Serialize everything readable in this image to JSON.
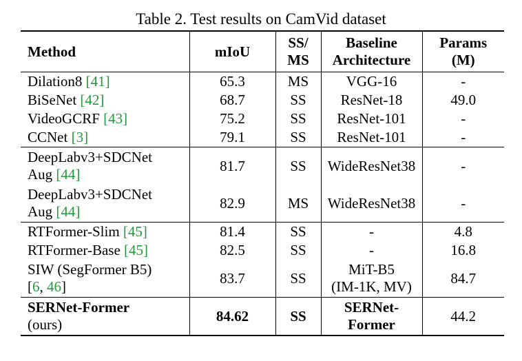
{
  "caption": "Table 2. Test results on CamVid dataset",
  "headers": {
    "method": "Method",
    "miou": "mIoU",
    "ssms_line1": "SS/",
    "ssms_line2": "MS",
    "arch_line1": "Baseline",
    "arch_line2": "Architecture",
    "params_line1": "Params",
    "params_line2": "(M)"
  },
  "rows": [
    {
      "name": "Dilation8 ",
      "ref": "[41]",
      "miou": "65.3",
      "ssms": "MS",
      "arch": "VGG-16",
      "params": "-"
    },
    {
      "name": "BiSeNet ",
      "ref": "[42]",
      "miou": "68.7",
      "ssms": "SS",
      "arch": "ResNet-18",
      "params": "49.0"
    },
    {
      "name": "VideoGCRF ",
      "ref": "[43]",
      "miou": "75.2",
      "ssms": "SS",
      "arch": "ResNet-101",
      "params": "-"
    },
    {
      "name": "CCNet ",
      "ref": "[3]",
      "miou": "79.1",
      "ssms": "SS",
      "arch": "ResNet-101",
      "params": "-"
    },
    {
      "name_line1": "DeepLabv3+SDCNet",
      "name_line2": "Aug ",
      "ref": "[44]",
      "miou": "81.7",
      "ssms": "SS",
      "arch": "WideResNet38",
      "params": "-"
    },
    {
      "name_line1": "DeepLabv3+SDCNet",
      "name_line2": "Aug ",
      "ref": "[44]",
      "miou": "82.9",
      "ssms": "MS",
      "arch": "WideResNet38",
      "params": "-"
    },
    {
      "name": "RTFormer-Slim ",
      "ref": "[45]",
      "miou": "81.4",
      "ssms": "SS",
      "arch": "-",
      "params": "4.8"
    },
    {
      "name": "RTFormer-Base ",
      "ref": "[45]",
      "miou": "82.5",
      "ssms": "SS",
      "arch": "-",
      "params": "16.8"
    },
    {
      "name_line1": "SIW (SegFormer B5)",
      "ref_open": "[",
      "ref_a": "6",
      "ref_sep": ", ",
      "ref_b": "46",
      "ref_close": "]",
      "miou": "83.7",
      "ssms": "SS",
      "arch_line1": "MiT-B5",
      "arch_line2": "(IM-1K, MV)",
      "params": "84.7"
    },
    {
      "name_line1": "SERNet-Former",
      "name_line2": "(ours)",
      "miou": "84.62",
      "ssms": "SS",
      "arch_line1": "SERNet-",
      "arch_line2": "Former",
      "params": "44.2"
    }
  ]
}
